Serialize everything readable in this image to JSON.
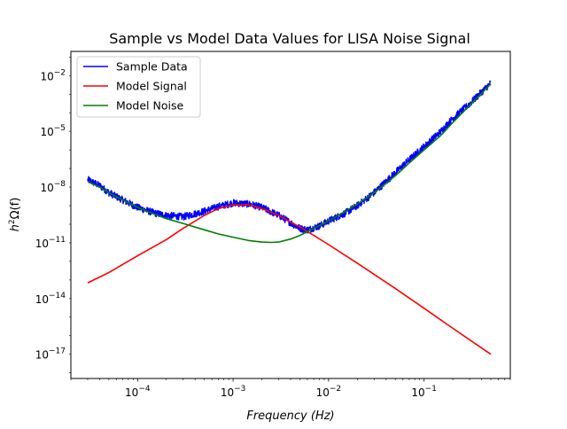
{
  "chart_data": {
    "type": "line",
    "title": "Sample vs Model Data Values for LISA Noise Signal",
    "xlabel": "Frequency  (Hz)",
    "ylabel": "h²Ω(f)",
    "xscale": "log",
    "yscale": "log",
    "xlim": [
      2e-05,
      0.8
    ],
    "ylim": [
      5e-19,
      0.2
    ],
    "x_ticks": [
      {
        "value": 0.0001,
        "base": "10",
        "exp": "−4"
      },
      {
        "value": 0.001,
        "base": "10",
        "exp": "−3"
      },
      {
        "value": 0.01,
        "base": "10",
        "exp": "−2"
      },
      {
        "value": 0.1,
        "base": "10",
        "exp": "−1"
      }
    ],
    "y_ticks": [
      {
        "value": 1e-17,
        "base": "10",
        "exp": "−17"
      },
      {
        "value": 1e-14,
        "base": "10",
        "exp": "−14"
      },
      {
        "value": 1e-11,
        "base": "10",
        "exp": "−11"
      },
      {
        "value": 1e-08,
        "base": "10",
        "exp": "−8"
      },
      {
        "value": 1e-05,
        "base": "10",
        "exp": "−5"
      },
      {
        "value": 0.01,
        "base": "10",
        "exp": "−2"
      }
    ],
    "grid": false,
    "legend_position": "top-left",
    "series": [
      {
        "name": "Sample Data",
        "color": "#0000ff",
        "x": [
          3e-05,
          4e-05,
          5e-05,
          7e-05,
          0.0001,
          0.00015,
          0.0002,
          0.0003,
          0.0005,
          0.0007,
          0.001,
          0.0015,
          0.002,
          0.003,
          0.004,
          0.005,
          0.006,
          0.008,
          0.01,
          0.015,
          0.02,
          0.03,
          0.05,
          0.07,
          0.1,
          0.15,
          0.2,
          0.3,
          0.5
        ],
        "y": [
          2.5e-08,
          1.2e-08,
          5e-09,
          2e-09,
          8e-10,
          4e-10,
          3e-10,
          2.5e-10,
          5e-10,
          9e-10,
          1.4e-09,
          1.2e-09,
          8e-10,
          3e-10,
          1.2e-10,
          6e-11,
          5e-11,
          8e-11,
          1.5e-10,
          4e-10,
          1e-09,
          5e-09,
          6e-08,
          3e-07,
          1.5e-06,
          1e-05,
          5e-05,
          0.0003,
          0.004
        ],
        "noisy": true
      },
      {
        "name": "Model Signal",
        "color": "#ff0000",
        "x": [
          3e-05,
          5e-05,
          0.0001,
          0.0002,
          0.0003,
          0.0005,
          0.0007,
          0.001,
          0.0015,
          0.002,
          0.003,
          0.005,
          0.007,
          0.01,
          0.02,
          0.05,
          0.1,
          0.2,
          0.5
        ],
        "y": [
          7e-14,
          2.5e-13,
          2e-12,
          1.5e-11,
          6e-11,
          3e-10,
          7e-10,
          1.1e-09,
          1.1e-09,
          7e-10,
          3e-10,
          7e-11,
          2.5e-11,
          8e-12,
          8e-13,
          3.5e-14,
          3e-15,
          2.5e-16,
          1e-17
        ]
      },
      {
        "name": "Model Noise",
        "color": "#008000",
        "x": [
          3e-05,
          4e-05,
          5e-05,
          7e-05,
          0.0001,
          0.00015,
          0.0002,
          0.0003,
          0.0005,
          0.0007,
          0.001,
          0.0015,
          0.002,
          0.0025,
          0.003,
          0.004,
          0.005,
          0.007,
          0.01,
          0.015,
          0.02,
          0.03,
          0.05,
          0.07,
          0.1,
          0.15,
          0.2,
          0.3,
          0.5
        ],
        "y": [
          2e-08,
          1e-08,
          5e-09,
          2e-09,
          8e-10,
          3.5e-10,
          2e-10,
          1.1e-10,
          5e-11,
          3e-11,
          2e-11,
          1.3e-11,
          1.1e-11,
          1.05e-11,
          1.1e-11,
          1.6e-11,
          2.5e-11,
          6e-11,
          1.5e-10,
          5e-10,
          1.2e-09,
          5e-09,
          4e-08,
          2e-07,
          1e-06,
          6e-06,
          3e-05,
          0.00025,
          0.0035
        ]
      }
    ]
  }
}
